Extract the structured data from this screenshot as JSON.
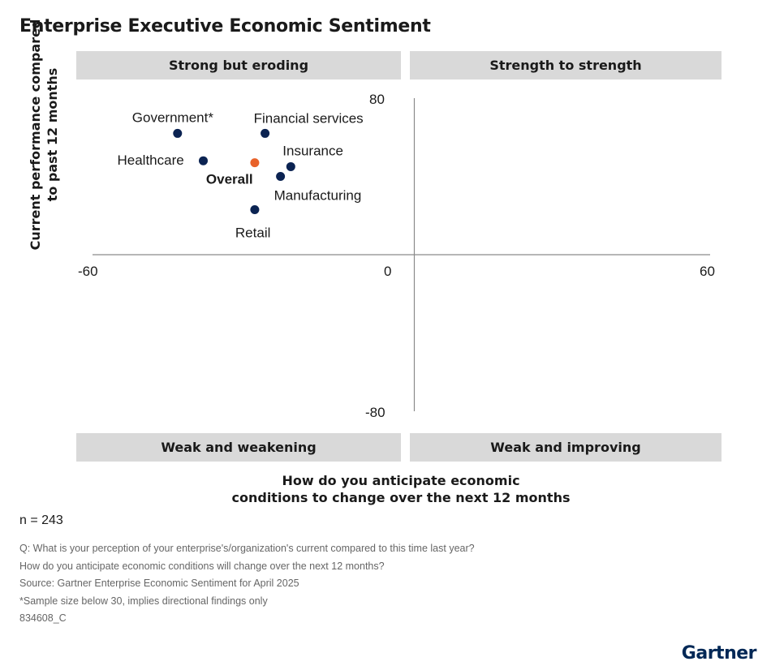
{
  "title": "Enterprise Executive Economic Sentiment",
  "quadrants": {
    "top_left": "Strong but eroding",
    "top_right": "Strength to strength",
    "bottom_left": "Weak and weakening",
    "bottom_right": "Weak and improving"
  },
  "chart_data": {
    "type": "scatter",
    "title": "Enterprise Executive Economic Sentiment",
    "xlabel_lines": [
      "How do you anticipate economic",
      "conditions to change over the next 12 months"
    ],
    "ylabel_lines": [
      "Current performance compared",
      "to past 12 months"
    ],
    "xlim": [
      -60,
      60
    ],
    "ylim": [
      -80,
      80
    ],
    "x_ticks": [
      "-60",
      "0",
      "60"
    ],
    "y_ticks": [
      "80",
      "-80"
    ],
    "grid": false,
    "points": [
      {
        "label": "Government*",
        "x": -46,
        "y": 62,
        "color": "#0b2352"
      },
      {
        "label": "Financial services",
        "x": -29,
        "y": 62,
        "color": "#0b2352"
      },
      {
        "label": "Healthcare",
        "x": -41,
        "y": 48,
        "color": "#0b2352"
      },
      {
        "label": "Overall",
        "x": -31,
        "y": 47,
        "color": "#e8622a",
        "bold": true
      },
      {
        "label": "Insurance",
        "x": -24,
        "y": 45,
        "color": "#0b2352"
      },
      {
        "label": "Manufacturing",
        "x": -26,
        "y": 40,
        "color": "#0b2352"
      },
      {
        "label": "Retail",
        "x": -31,
        "y": 23,
        "color": "#0b2352"
      }
    ]
  },
  "n_label": "n = 243",
  "notes": [
    "Q: What is your perception of your enterprise's/organization's current compared to this time last year?",
    "How do you anticipate economic conditions will change over the next 12 months?",
    "Source: Gartner Enterprise Economic Sentiment for April 2025",
    "*Sample size below 30, implies directional findings only",
    "834608_C"
  ],
  "brand": "Gartner"
}
